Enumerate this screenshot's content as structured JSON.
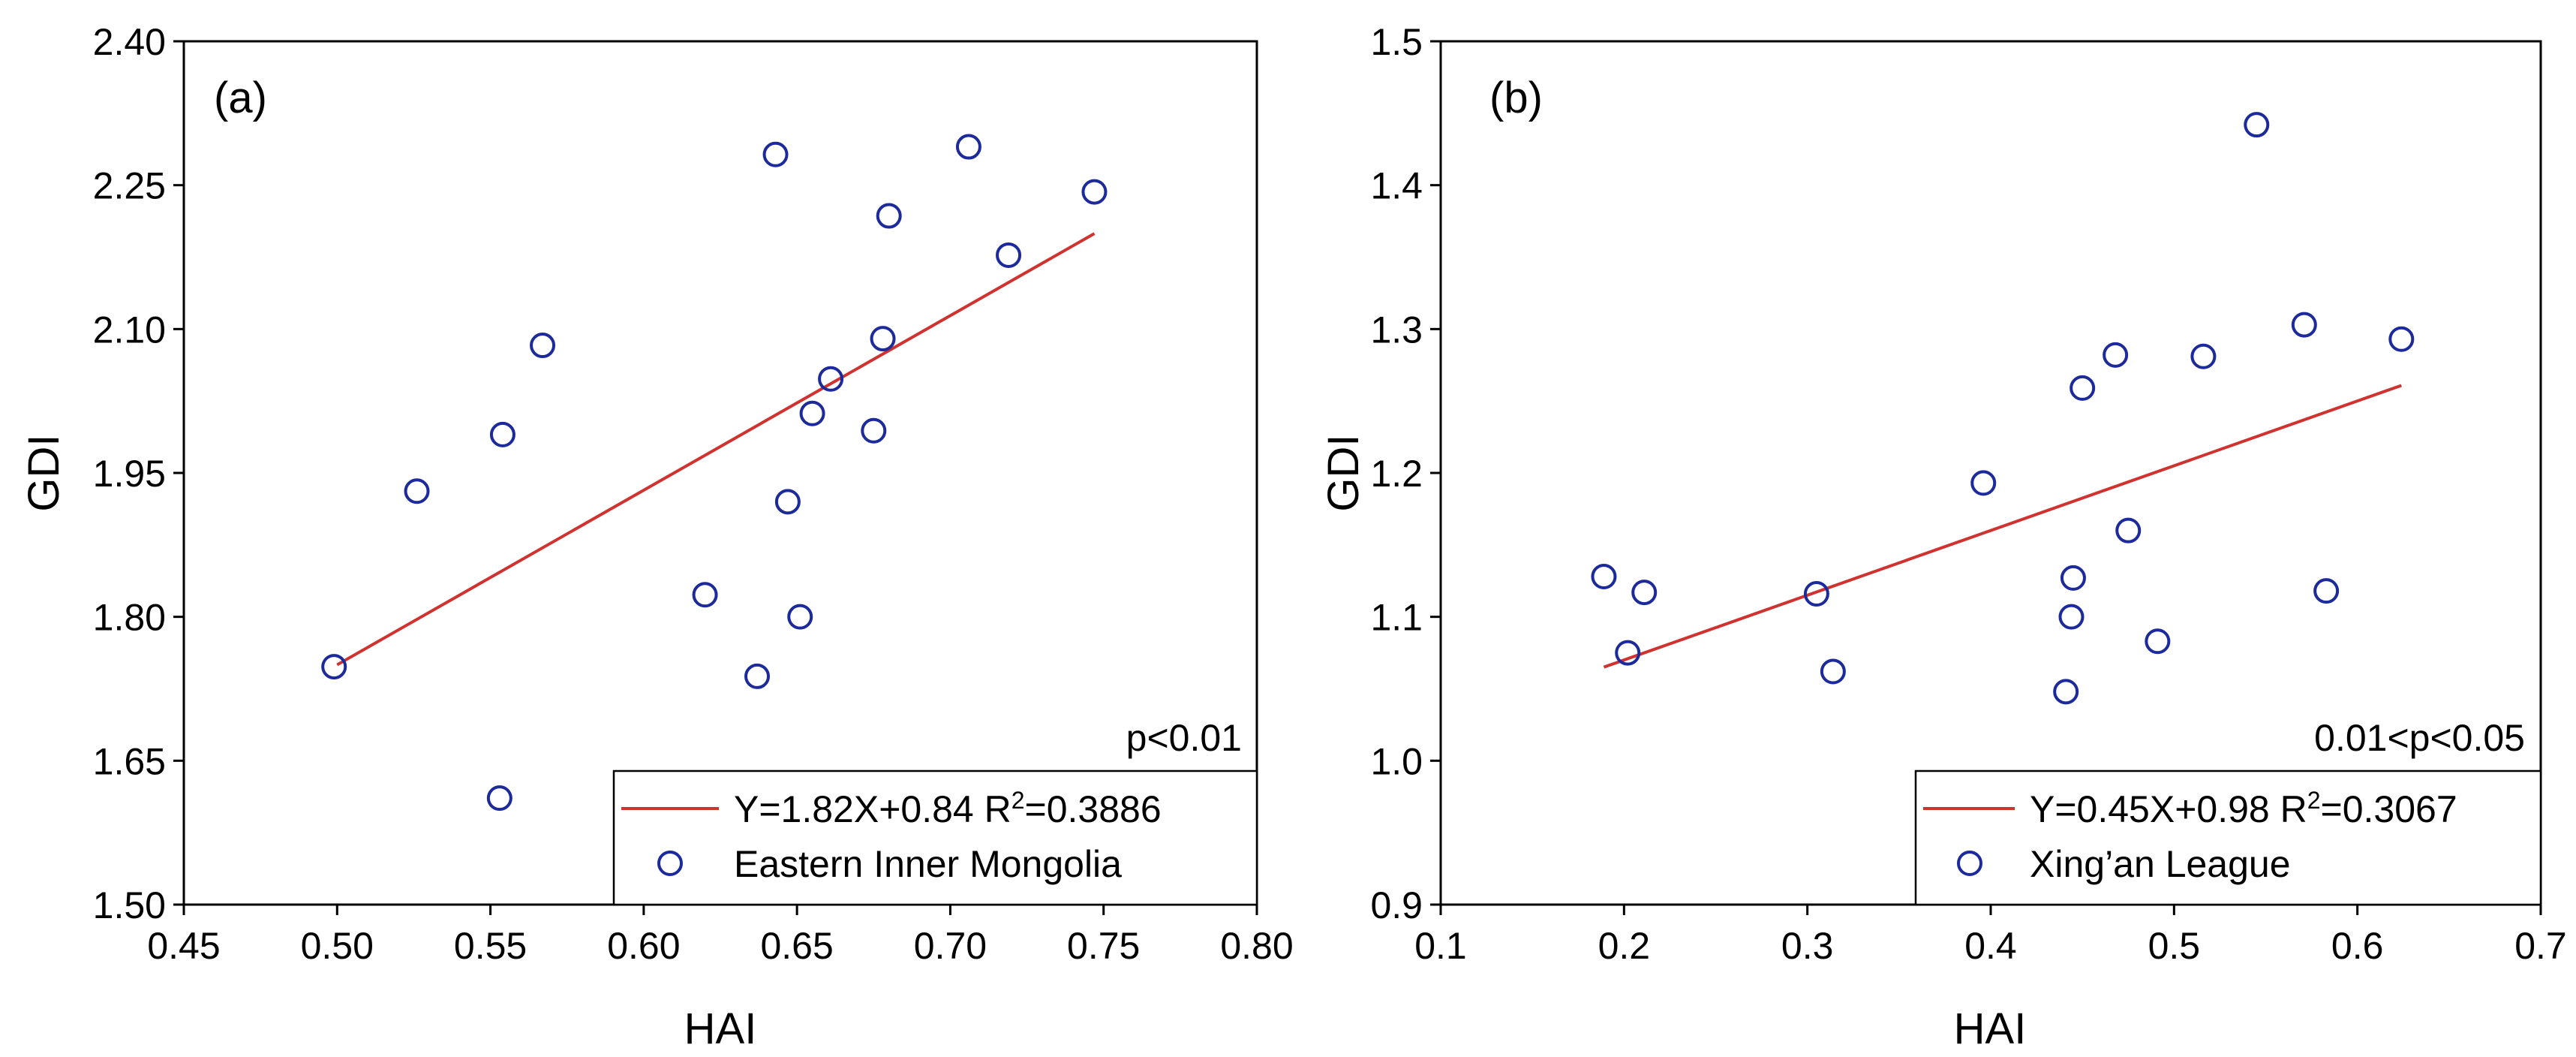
{
  "chart_data": [
    {
      "panel": "a",
      "type": "scatter",
      "panel_label": "(a)",
      "xlabel": "HAI",
      "ylabel": "GDI",
      "xlim": [
        0.45,
        0.8
      ],
      "ylim": [
        1.5,
        2.4
      ],
      "xticks": [
        "0.45",
        "0.50",
        "0.55",
        "0.60",
        "0.65",
        "0.70",
        "0.75",
        "0.80"
      ],
      "yticks": [
        "1.50",
        "1.65",
        "1.80",
        "1.95",
        "2.10",
        "2.25",
        "2.40"
      ],
      "points": [
        [
          0.499,
          1.748
        ],
        [
          0.526,
          1.931
        ],
        [
          0.553,
          1.611
        ],
        [
          0.554,
          1.99
        ],
        [
          0.567,
          2.083
        ],
        [
          0.62,
          1.823
        ],
        [
          0.637,
          1.738
        ],
        [
          0.643,
          2.282
        ],
        [
          0.647,
          1.92
        ],
        [
          0.651,
          1.8
        ],
        [
          0.655,
          2.012
        ],
        [
          0.661,
          2.048
        ],
        [
          0.675,
          1.994
        ],
        [
          0.678,
          2.09
        ],
        [
          0.68,
          2.218
        ],
        [
          0.706,
          2.29
        ],
        [
          0.719,
          2.177
        ],
        [
          0.747,
          2.243
        ]
      ],
      "fit_line": {
        "slope": 1.82,
        "intercept": 0.84,
        "x_range": [
          0.5,
          0.747
        ]
      },
      "annotation": "p<0.01",
      "legend": {
        "line_label": "Y=1.82X+0.84 R",
        "r2_sup": "2",
        "r2_value": "=0.3886",
        "marker_label": "Eastern Inner Mongolia",
        "position": "bottom-right"
      }
    },
    {
      "panel": "b",
      "type": "scatter",
      "panel_label": "(b)",
      "xlabel": "HAI",
      "ylabel": "GDI",
      "xlim": [
        0.1,
        0.7
      ],
      "ylim": [
        0.9,
        1.5
      ],
      "xticks": [
        "0.1",
        "0.2",
        "0.3",
        "0.4",
        "0.5",
        "0.6",
        "0.7"
      ],
      "yticks": [
        "0.9",
        "1.0",
        "1.1",
        "1.2",
        "1.3",
        "1.4",
        "1.5"
      ],
      "points": [
        [
          0.189,
          1.128
        ],
        [
          0.202,
          1.075
        ],
        [
          0.211,
          1.117
        ],
        [
          0.305,
          1.116
        ],
        [
          0.314,
          1.062
        ],
        [
          0.396,
          1.193
        ],
        [
          0.441,
          1.048
        ],
        [
          0.444,
          1.1
        ],
        [
          0.445,
          1.127
        ],
        [
          0.45,
          1.259
        ],
        [
          0.468,
          1.282
        ],
        [
          0.475,
          1.16
        ],
        [
          0.491,
          1.083
        ],
        [
          0.516,
          1.281
        ],
        [
          0.545,
          1.442
        ],
        [
          0.571,
          1.303
        ],
        [
          0.583,
          1.118
        ],
        [
          0.624,
          1.293
        ]
      ],
      "fit_line": {
        "slope": 0.45,
        "intercept": 0.98,
        "x_range": [
          0.189,
          0.624
        ]
      },
      "annotation": "0.01<p<0.05",
      "legend": {
        "line_label": "Y=0.45X+0.98 R",
        "r2_sup": "2",
        "r2_value": "=0.3067",
        "marker_label": "Xing’an League",
        "position": "bottom-right"
      }
    }
  ],
  "colors": {
    "marker": "#1c2a9c",
    "fit_line": "#d0332f",
    "axis": "#000000"
  }
}
